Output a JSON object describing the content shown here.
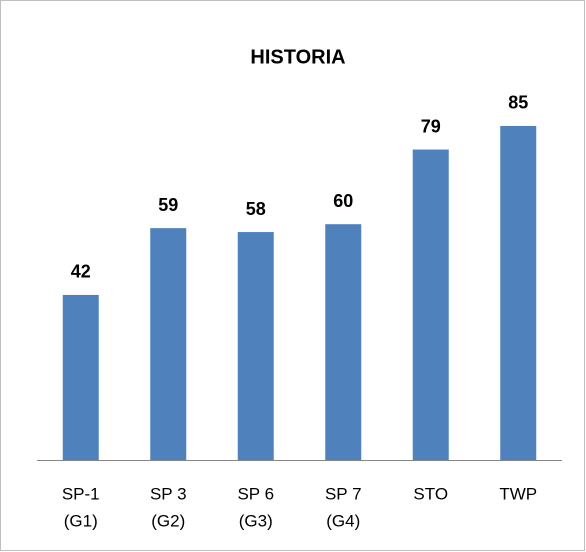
{
  "chart_data": {
    "type": "bar",
    "title": "HISTORIA",
    "categories": [
      [
        "SP-1",
        "(G1)"
      ],
      [
        "SP 3",
        "(G2)"
      ],
      [
        "SP 6",
        "(G3)"
      ],
      [
        "SP 7",
        "(G4)"
      ],
      [
        "STO"
      ],
      [
        "TWP"
      ]
    ],
    "values": [
      42,
      59,
      58,
      60,
      79,
      85
    ],
    "color": "#4f81bd"
  }
}
